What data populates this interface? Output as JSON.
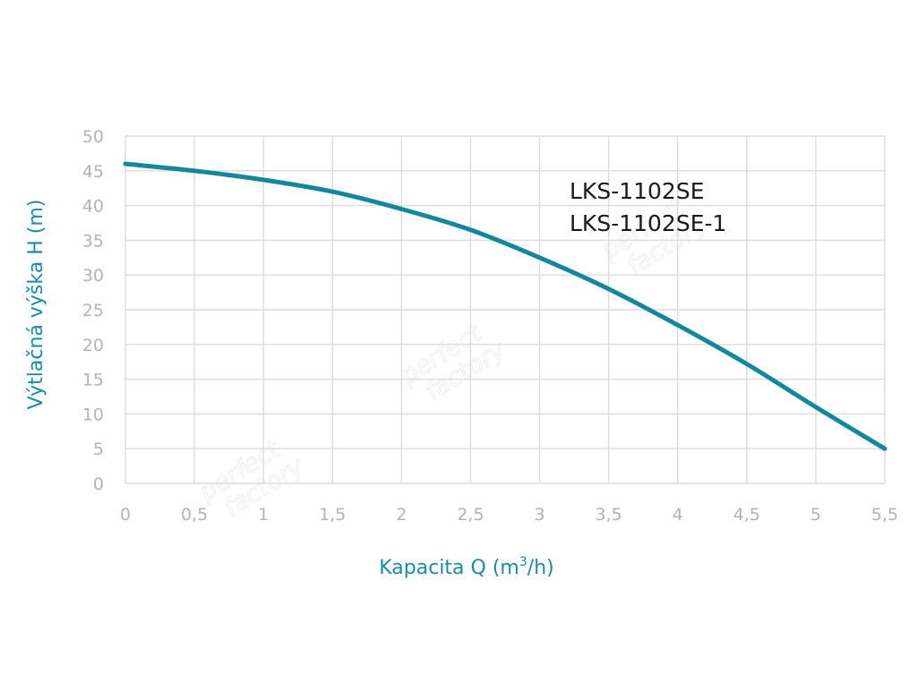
{
  "chart_data": {
    "type": "line",
    "ylabel": "Výtlačná výška H (m)",
    "xlabel_parts": [
      "Kapacita Q (m",
      "3",
      "/h)"
    ],
    "xlabel": "Kapacita Q (m³/h)",
    "annotations": [
      "LKS-1102SE",
      "LKS-1102SE-1"
    ],
    "x_ticks": [
      "0",
      "0,5",
      "1",
      "1,5",
      "2",
      "2,5",
      "3",
      "3,5",
      "4",
      "4,5",
      "5",
      "5,5"
    ],
    "y_ticks": [
      "0",
      "5",
      "10",
      "15",
      "20",
      "25",
      "30",
      "35",
      "40",
      "45",
      "50"
    ],
    "xlim": [
      0,
      5.5
    ],
    "ylim": [
      0,
      50
    ],
    "grid": true,
    "series": [
      {
        "color": "#14879e",
        "x": [
          0,
          0.5,
          1,
          1.5,
          2,
          2.5,
          3,
          3.5,
          4,
          4.5,
          5,
          5.5
        ],
        "y": [
          46,
          45,
          43.7,
          42,
          39.5,
          36.5,
          32.5,
          28,
          22.8,
          17.2,
          11,
          5
        ]
      }
    ]
  },
  "watermark": {
    "lines": [
      "perfect",
      "factory"
    ]
  }
}
